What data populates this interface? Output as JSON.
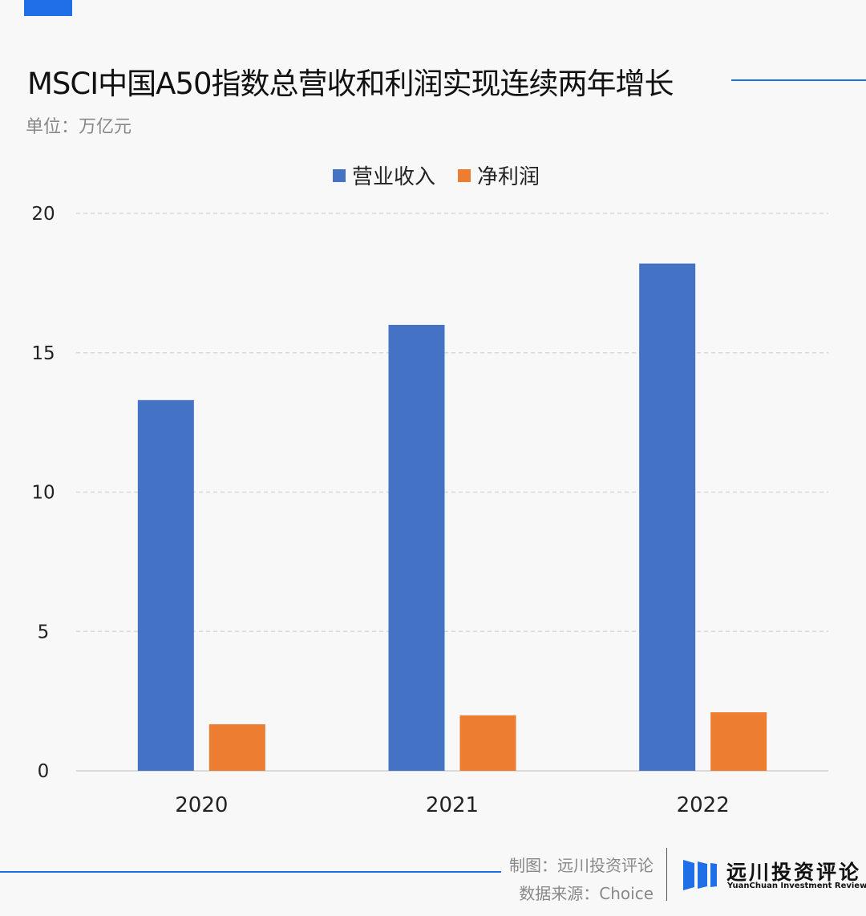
{
  "header": {
    "title": "MSCI中国A50指数总营收和利润实现连续两年增长",
    "unit": "单位：万亿元"
  },
  "footer": {
    "credit": "制图：远川投资评论",
    "source": "数据来源：Choice",
    "logo_cn": "远川投资评论",
    "logo_en": "YuanChuan Investment Review"
  },
  "colors": {
    "accent": "#1e6fe8",
    "revenue": "#4472c4",
    "profit": "#ed7d31"
  },
  "chart_data": {
    "type": "bar",
    "title": "MSCI中国A50指数总营收和利润实现连续两年增长",
    "ylabel": "单位：万亿元",
    "categories": [
      "2020",
      "2021",
      "2022"
    ],
    "series": [
      {
        "name": "营业收入",
        "values": [
          13.3,
          16.0,
          18.2
        ],
        "color": "#4472c4"
      },
      {
        "name": "净利润",
        "values": [
          1.67,
          1.99,
          2.1
        ],
        "color": "#ed7d31"
      }
    ],
    "ylim": [
      0,
      20
    ],
    "yticks": [
      "0",
      "5",
      "10",
      "15",
      "20"
    ],
    "grid": true,
    "legend": "top-center"
  }
}
